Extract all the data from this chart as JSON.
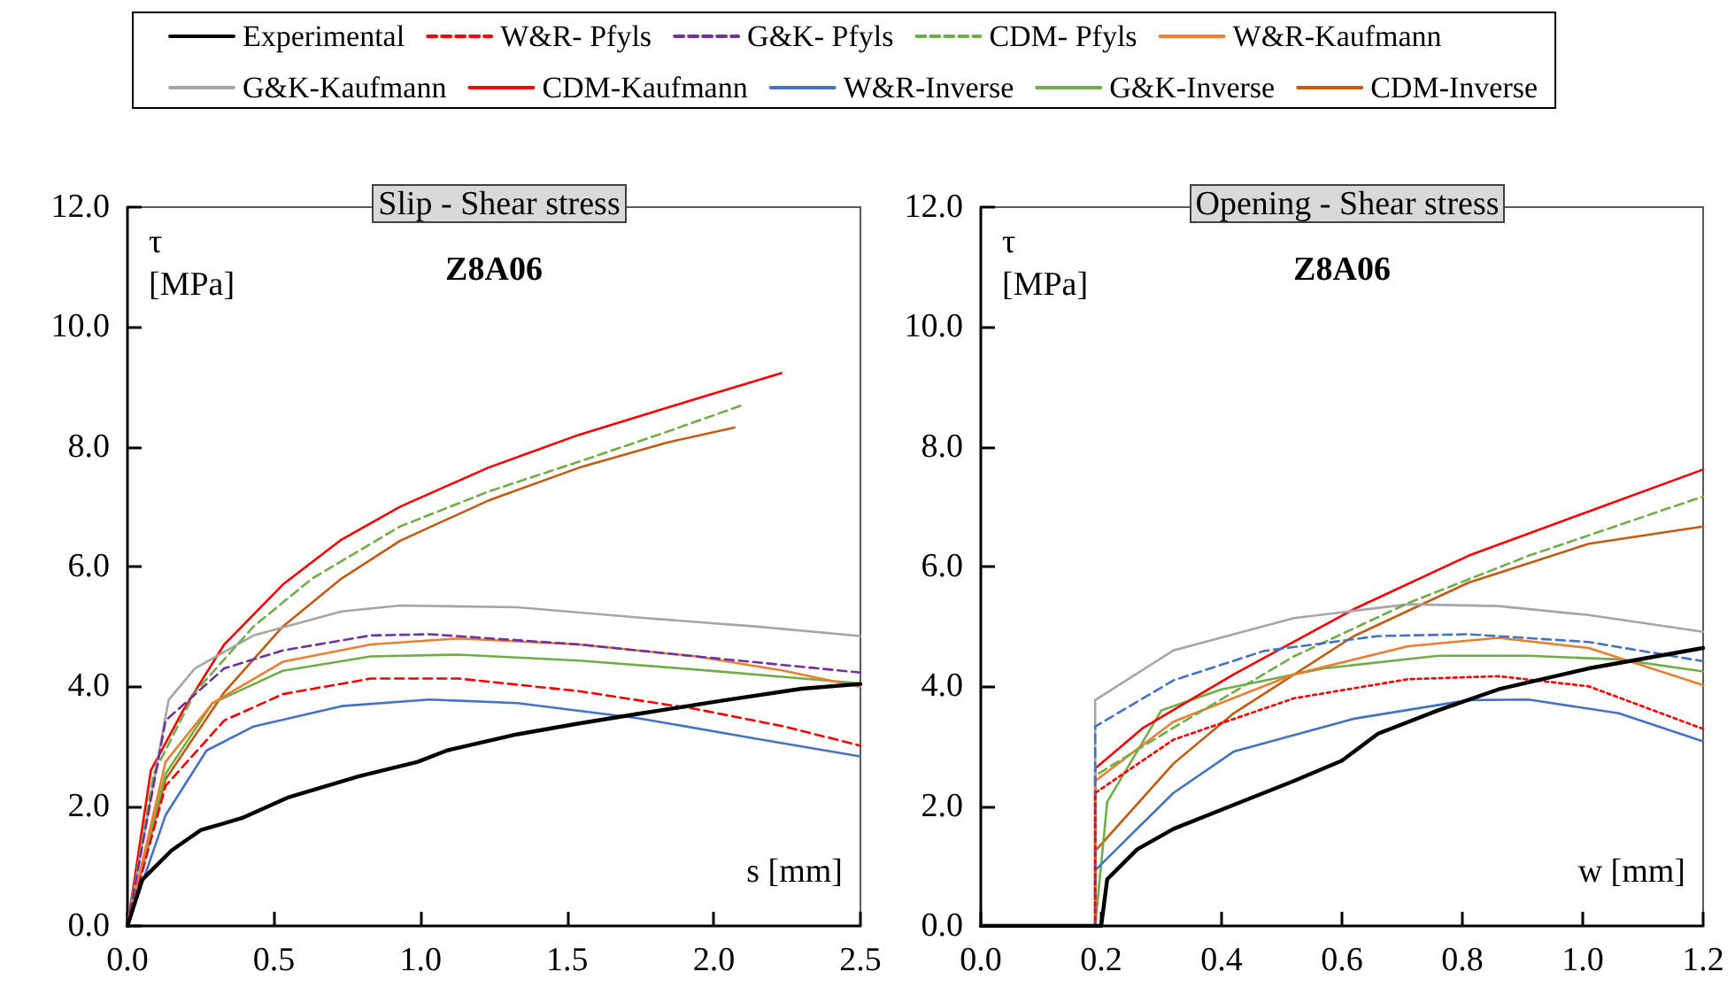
{
  "chart_data": [
    {
      "type": "line",
      "title": "Slip - Shear stress",
      "subtitle": "Z8A06",
      "xlabel": "s [mm]",
      "ylabel": "τ [MPa]",
      "legend": "top",
      "grid": false,
      "marker": "none",
      "xlim": [
        0,
        2.5
      ],
      "ylim": [
        0,
        12
      ],
      "xticks": [
        {
          "value": 0,
          "label": "0.0"
        },
        {
          "value": 0.5,
          "label": "0.5"
        },
        {
          "value": 1,
          "label": "1.0"
        },
        {
          "value": 1.5,
          "label": "1.5"
        },
        {
          "value": 2,
          "label": "2.0"
        },
        {
          "value": 2.5,
          "label": "2.5"
        }
      ],
      "yticks": [
        {
          "value": 0,
          "label": "0.0"
        },
        {
          "value": 2,
          "label": "2.0"
        },
        {
          "value": 4,
          "label": "4.0"
        },
        {
          "value": 6,
          "label": "6.0"
        },
        {
          "value": 8,
          "label": "8.0"
        },
        {
          "value": 10,
          "label": "10.0"
        },
        {
          "value": 12,
          "label": "12.0"
        }
      ],
      "series": [
        {
          "name": "Experimental",
          "color": "#000000",
          "line_style": "solid",
          "x": [
            0,
            0.05,
            0.15,
            0.25,
            0.39,
            0.55,
            0.79,
            0.99,
            1.09,
            1.33,
            1.54,
            1.74,
            2.04,
            2.3,
            2.5
          ],
          "values": [
            0,
            0.77,
            1.26,
            1.6,
            1.8,
            2.15,
            2.5,
            2.74,
            2.93,
            3.2,
            3.38,
            3.54,
            3.77,
            3.96,
            4.04
          ]
        },
        {
          "name": "W&R- Pfyls",
          "color": "#ff0000",
          "line_style": "dashed",
          "x": [
            0,
            0.13,
            0.33,
            0.53,
            0.83,
            1.13,
            1.54,
            1.94,
            2.24,
            2.5
          ],
          "values": [
            0,
            2.34,
            3.43,
            3.87,
            4.13,
            4.13,
            3.92,
            3.62,
            3.33,
            3.01
          ]
        },
        {
          "name": "G&K- Pfyls",
          "color": "#7030a0",
          "line_style": "dashed",
          "x": [
            0,
            0.13,
            0.33,
            0.53,
            0.83,
            1.03,
            1.54,
            1.94,
            2.5
          ],
          "values": [
            0,
            3.43,
            4.3,
            4.6,
            4.85,
            4.87,
            4.7,
            4.5,
            4.23
          ]
        },
        {
          "name": "CDM- Pfyls",
          "color": "#70ad47",
          "line_style": "dashed",
          "x": [
            0,
            0.09,
            0.23,
            0.43,
            0.63,
            0.93,
            1.23,
            1.54,
            1.84,
            2.1
          ],
          "values": [
            0,
            2.55,
            3.9,
            5.0,
            5.8,
            6.67,
            7.25,
            7.75,
            8.25,
            8.7
          ]
        },
        {
          "name": "W&R-Kaufmann",
          "color": "#ed7d31",
          "line_style": "solid",
          "x": [
            0,
            0.13,
            0.29,
            0.53,
            0.83,
            1.13,
            1.54,
            1.94,
            2.24,
            2.5
          ],
          "values": [
            0,
            2.74,
            3.72,
            4.41,
            4.7,
            4.8,
            4.7,
            4.5,
            4.26,
            3.99
          ]
        },
        {
          "name": "G&K-Kaufmann",
          "color": "#a5a5a5",
          "line_style": "solid",
          "x": [
            0,
            0.14,
            0.23,
            0.43,
            0.73,
            0.93,
            1.33,
            1.74,
            2.14,
            2.5
          ],
          "values": [
            0,
            3.77,
            4.3,
            4.85,
            5.25,
            5.35,
            5.32,
            5.15,
            5.0,
            4.84
          ]
        },
        {
          "name": "CDM-Kaufmann",
          "color": "#ff0000",
          "line_style": "solid",
          "x": [
            0,
            0.08,
            0.19,
            0.33,
            0.53,
            0.73,
            0.93,
            1.23,
            1.54,
            1.94,
            2.23
          ],
          "values": [
            0,
            2.6,
            3.6,
            4.7,
            5.7,
            6.45,
            7.0,
            7.65,
            8.2,
            8.8,
            9.23
          ]
        },
        {
          "name": "W&R-Inverse",
          "color": "#4472c4",
          "line_style": "solid",
          "x": [
            0,
            0.13,
            0.27,
            0.43,
            0.73,
            1.03,
            1.33,
            1.74,
            2.14,
            2.5
          ],
          "values": [
            0,
            1.85,
            2.93,
            3.33,
            3.67,
            3.78,
            3.72,
            3.47,
            3.13,
            2.83
          ]
        },
        {
          "name": "G&K-Inverse",
          "color": "#70ad47",
          "line_style": "solid",
          "x": [
            0,
            0.13,
            0.29,
            0.53,
            0.83,
            1.13,
            1.54,
            1.94,
            2.5
          ],
          "values": [
            0,
            2.54,
            3.72,
            4.26,
            4.5,
            4.53,
            4.43,
            4.28,
            4.05
          ]
        },
        {
          "name": "CDM-Inverse",
          "color": "#c55a11",
          "line_style": "solid",
          "x": [
            0,
            0.13,
            0.33,
            0.53,
            0.73,
            0.93,
            1.23,
            1.54,
            1.84,
            2.07
          ],
          "values": [
            0,
            2.45,
            3.9,
            5.0,
            5.8,
            6.43,
            7.1,
            7.65,
            8.07,
            8.32
          ]
        }
      ]
    },
    {
      "type": "line",
      "title": "Opening - Shear stress",
      "subtitle": "Z8A06",
      "xlabel": "w [mm]",
      "ylabel": "τ [MPa]",
      "legend": false,
      "grid": false,
      "marker": "none",
      "xlim": [
        0,
        1.2
      ],
      "ylim": [
        0,
        12
      ],
      "xticks": [
        {
          "value": 0,
          "label": "0.0"
        },
        {
          "value": 0.2,
          "label": "0.2"
        },
        {
          "value": 0.4,
          "label": "0.4"
        },
        {
          "value": 0.6,
          "label": "0.6"
        },
        {
          "value": 0.8,
          "label": "0.8"
        },
        {
          "value": 1,
          "label": "1.0"
        },
        {
          "value": 1.2,
          "label": "1.2"
        }
      ],
      "yticks": [
        {
          "value": 0,
          "label": "0.0"
        },
        {
          "value": 2,
          "label": "2.0"
        },
        {
          "value": 4,
          "label": "4.0"
        },
        {
          "value": 6,
          "label": "6.0"
        },
        {
          "value": 8,
          "label": "8.0"
        },
        {
          "value": 10,
          "label": "10.0"
        },
        {
          "value": 12,
          "label": "12.0"
        }
      ],
      "series": [
        {
          "color": "#000000",
          "line_style": "solid",
          "x": [
            0,
            0.2,
            0.21,
            0.26,
            0.32,
            0.42,
            0.52,
            0.6,
            0.66,
            0.76,
            0.86,
            1.01,
            1.2
          ],
          "values": [
            0,
            0,
            0.78,
            1.28,
            1.62,
            2.02,
            2.42,
            2.76,
            3.21,
            3.6,
            3.95,
            4.3,
            4.64
          ]
        },
        {
          "color": "#ff0000",
          "line_style": "dotted",
          "x": [
            0,
            0.19,
            0.19,
            0.32,
            0.52,
            0.71,
            0.86,
            1.01,
            1.2
          ],
          "values": [
            0,
            0,
            2.22,
            3.11,
            3.8,
            4.12,
            4.17,
            4.0,
            3.29
          ]
        },
        {
          "color": "#4472c4",
          "line_style": "dashed",
          "x": [
            0,
            0.19,
            0.19,
            0.32,
            0.47,
            0.66,
            0.81,
            1.01,
            1.2
          ],
          "values": [
            0,
            0,
            3.33,
            4.1,
            4.59,
            4.84,
            4.87,
            4.74,
            4.42
          ]
        },
        {
          "color": "#70ad47",
          "line_style": "dashed",
          "x": [
            0,
            0.19,
            0.19,
            0.32,
            0.52,
            0.71,
            0.91,
            1.2
          ],
          "values": [
            0,
            0,
            2.51,
            3.31,
            4.5,
            5.39,
            6.18,
            7.17
          ]
        },
        {
          "color": "#ed7d31",
          "line_style": "solid",
          "x": [
            0,
            0.19,
            0.19,
            0.32,
            0.52,
            0.71,
            0.86,
            1.01,
            1.2
          ],
          "values": [
            0,
            0,
            2.42,
            3.41,
            4.2,
            4.67,
            4.81,
            4.64,
            4.02
          ]
        },
        {
          "color": "#a5a5a5",
          "line_style": "solid",
          "x": [
            0,
            0.19,
            0.19,
            0.32,
            0.52,
            0.71,
            0.86,
            1.01,
            1.2
          ],
          "values": [
            0,
            0,
            3.77,
            4.6,
            5.14,
            5.37,
            5.34,
            5.19,
            4.91
          ]
        },
        {
          "color": "#ff0000",
          "line_style": "solid",
          "x": [
            0,
            0.19,
            0.19,
            0.27,
            0.42,
            0.62,
            0.81,
            1.01,
            1.2
          ],
          "values": [
            0,
            0,
            2.63,
            3.31,
            4.2,
            5.29,
            6.18,
            6.92,
            7.62
          ]
        },
        {
          "color": "#4472c4",
          "line_style": "solid",
          "x": [
            0,
            0.19,
            0.19,
            0.32,
            0.42,
            0.62,
            0.81,
            0.91,
            1.06,
            1.2
          ],
          "values": [
            0,
            0,
            0.93,
            2.22,
            2.91,
            3.46,
            3.77,
            3.78,
            3.55,
            3.08
          ]
        },
        {
          "color": "#70ad47",
          "line_style": "solid",
          "x": [
            0,
            0.19,
            0.21,
            0.3,
            0.4,
            0.57,
            0.76,
            0.91,
            1.06,
            1.2
          ],
          "values": [
            0,
            0,
            2.07,
            3.6,
            3.95,
            4.3,
            4.51,
            4.51,
            4.45,
            4.25
          ]
        },
        {
          "color": "#c55a11",
          "line_style": "solid",
          "x": [
            0,
            0.19,
            0.19,
            0.32,
            0.42,
            0.62,
            0.81,
            1.01,
            1.2
          ],
          "values": [
            0,
            0,
            1.25,
            2.71,
            3.55,
            4.84,
            5.73,
            6.38,
            6.67
          ]
        }
      ]
    }
  ]
}
